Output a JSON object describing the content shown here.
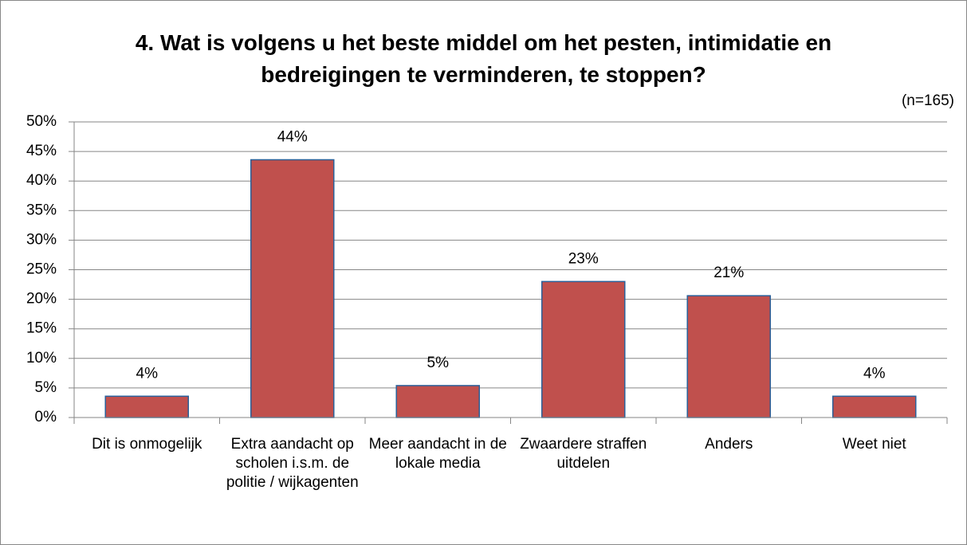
{
  "chart_data": {
    "type": "bar",
    "title": "4. Wat is volgens u het beste middel om het pesten, intimidatie en bedreigingen te verminderen, te stoppen?",
    "subtitle": "(n=165)",
    "categories": [
      "Dit is onmogelijk",
      "Extra aandacht op scholen i.s.m. de politie / wijkagenten",
      "Meer aandacht in de lokale media",
      "Zwaardere straffen uitdelen",
      "Anders",
      "Weet niet"
    ],
    "values": [
      3.6,
      43.6,
      5.4,
      23,
      20.6,
      3.6
    ],
    "value_labels": [
      "4%",
      "44%",
      "5%",
      "23%",
      "21%",
      "4%"
    ],
    "color": "#c0504d",
    "ylim": [
      0,
      50
    ],
    "yticks": [
      {
        "value": 0,
        "label": "0%"
      },
      {
        "value": 5,
        "label": "5%"
      },
      {
        "value": 10,
        "label": "10%"
      },
      {
        "value": 15,
        "label": "15%"
      },
      {
        "value": 20,
        "label": "20%"
      },
      {
        "value": 25,
        "label": "25%"
      },
      {
        "value": 30,
        "label": "30%"
      },
      {
        "value": 35,
        "label": "35%"
      },
      {
        "value": 40,
        "label": "40%"
      },
      {
        "value": 45,
        "label": "45%"
      },
      {
        "value": 50,
        "label": "50%"
      }
    ],
    "grid": true
  }
}
